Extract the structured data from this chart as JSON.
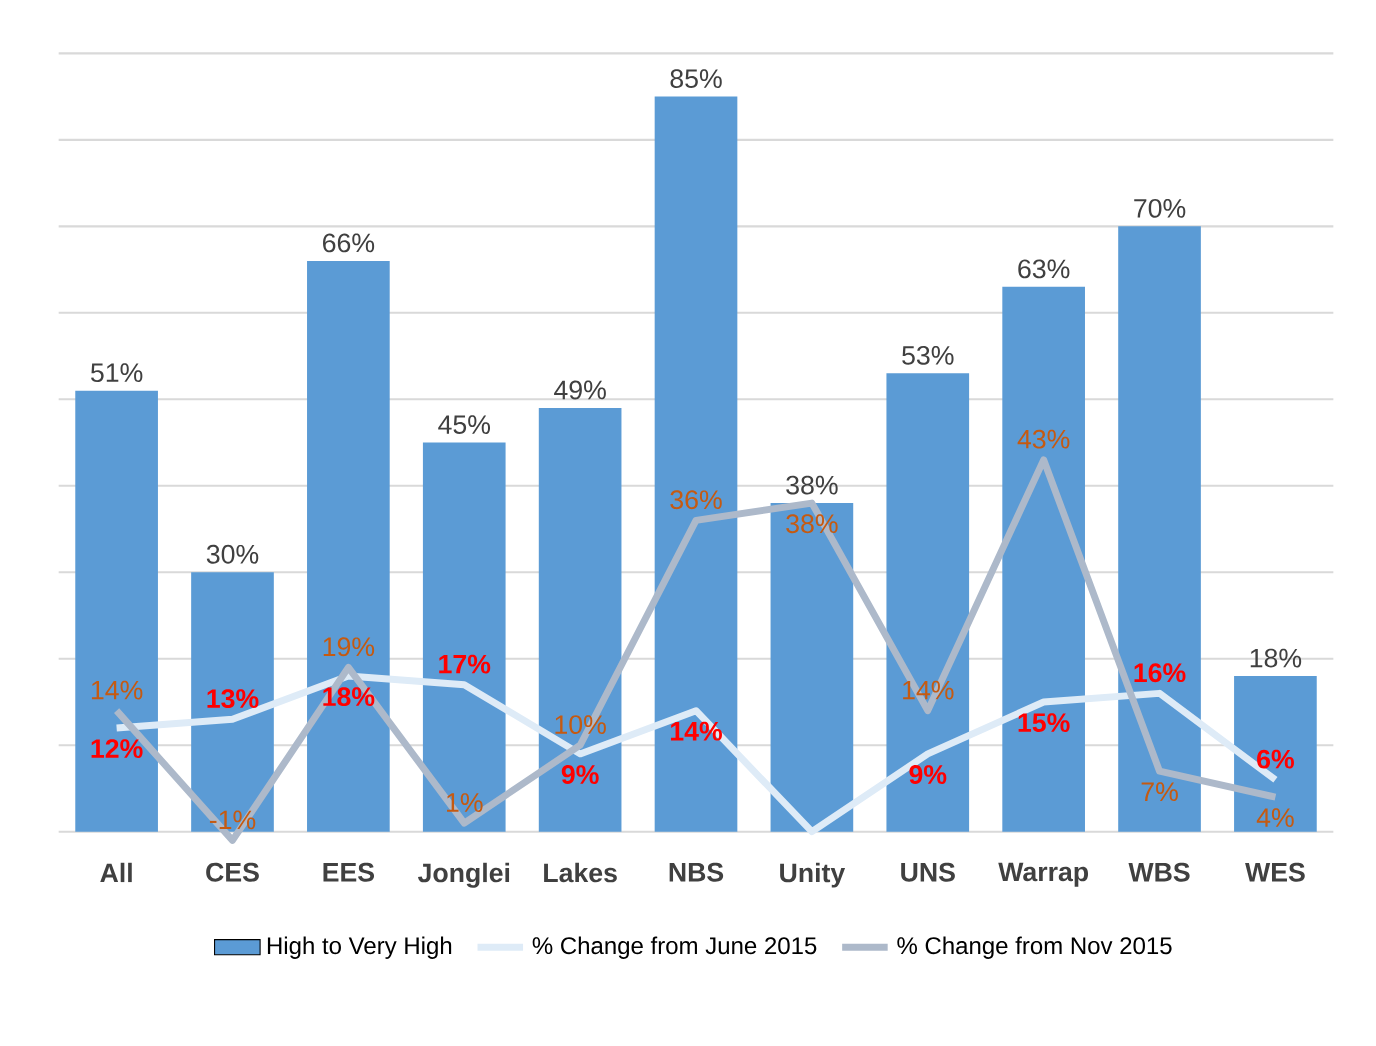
{
  "chart_data": {
    "type": "bar",
    "categories": [
      "All",
      "CES",
      "EES",
      "Jonglei",
      "Lakes",
      "NBS",
      "Unity",
      "UNS",
      "Warrap",
      "WBS",
      "WES"
    ],
    "series": [
      {
        "name": "High to Very High",
        "color": "#5b9bd5",
        "values": [
          51,
          30,
          66,
          45,
          49,
          85,
          38,
          53,
          63,
          70,
          18
        ],
        "value_labels": [
          "51%",
          "30%",
          "66%",
          "45%",
          "49%",
          "85%",
          "38%",
          "53%",
          "63%",
          "70%",
          "18%"
        ]
      },
      {
        "name": "% Change from June 2015",
        "type": "line",
        "color": "#deebf7",
        "values": [
          12,
          13,
          18,
          17,
          9,
          14,
          0,
          9,
          15,
          16,
          6
        ],
        "value_labels": [
          "12%",
          "13%",
          "18%",
          "17%",
          "9%",
          "14%",
          null,
          "9%",
          "15%",
          "16%",
          "6%"
        ]
      },
      {
        "name": "% Change from Nov 2015",
        "type": "line",
        "color": "#adb9ca",
        "values": [
          14,
          -1,
          19,
          1,
          10,
          36,
          38,
          14,
          43,
          7,
          4
        ],
        "value_labels": [
          "14%",
          "-1%",
          "19%",
          "1%",
          "10%",
          "36%",
          "38%",
          "14%",
          "43%",
          "7%",
          "4%"
        ]
      }
    ],
    "yticks": [
      {
        "value": 0,
        "label": null
      },
      {
        "value": 10,
        "label": null
      },
      {
        "value": 20,
        "label": null
      },
      {
        "value": 30,
        "label": null
      },
      {
        "value": 40,
        "label": null
      },
      {
        "value": 50,
        "label": null
      },
      {
        "value": 60,
        "label": null
      },
      {
        "value": 70,
        "label": null
      },
      {
        "value": 80,
        "label": null
      },
      {
        "value": 90,
        "label": null
      }
    ],
    "tick_labels": "x",
    "grid": "y",
    "legend": "bottom",
    "marker": "none"
  }
}
